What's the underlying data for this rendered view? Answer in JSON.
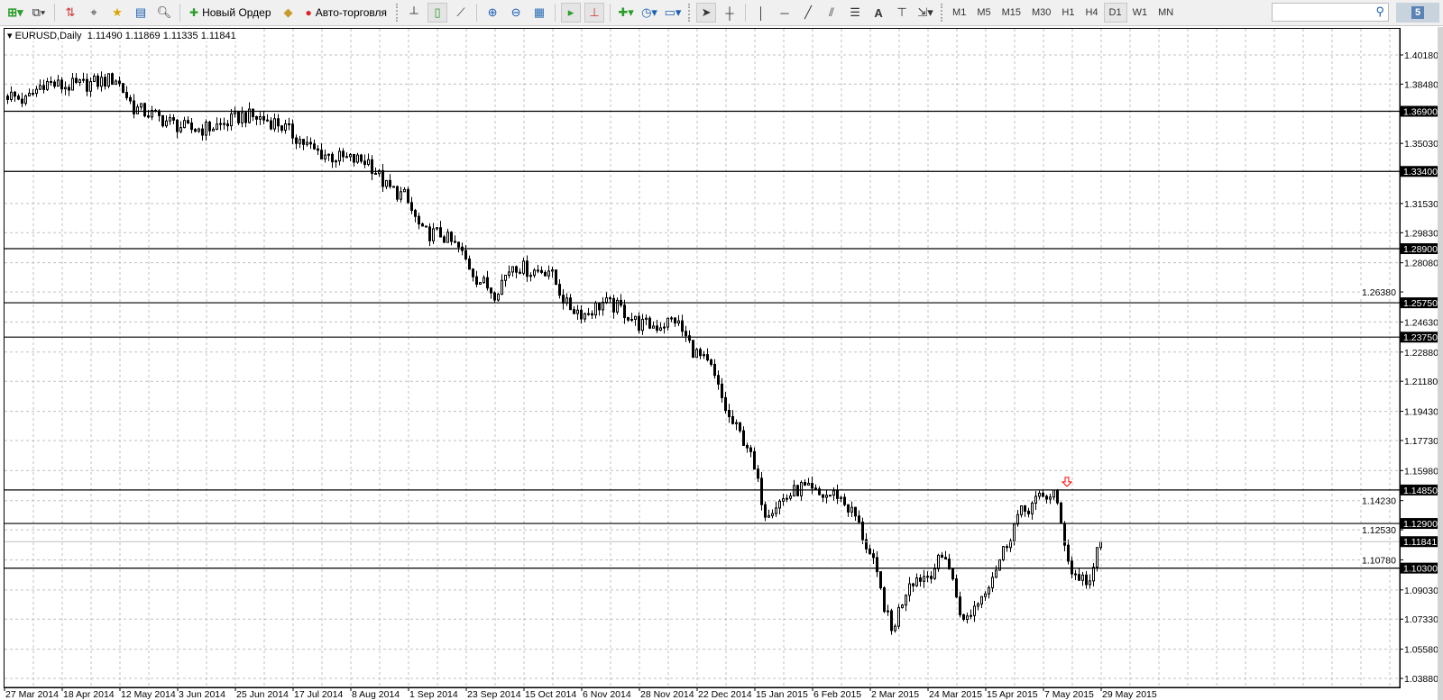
{
  "toolbar": {
    "new_order_label": "Новый Ордер",
    "autotrading_label": "Авто-торговля",
    "timeframes": [
      "M1",
      "M5",
      "M15",
      "M30",
      "H1",
      "H4",
      "D1",
      "W1",
      "MN"
    ],
    "selected_timeframe": "D1",
    "search_placeholder": "",
    "chat_count": "5"
  },
  "chart_header": {
    "symbol": "EURUSD,Daily",
    "open": "1.11490",
    "high": "1.11869",
    "low": "1.11335",
    "close": "1.11841"
  },
  "chart_data": {
    "type": "candlestick",
    "weekly_closes": [
      1.3787,
      1.375,
      1.386,
      1.3835,
      1.384,
      1.386,
      1.388,
      1.371,
      1.367,
      1.3625,
      1.3585,
      1.359,
      1.3615,
      1.3665,
      1.365,
      1.362,
      1.354,
      1.346,
      1.3425,
      1.3408,
      1.34,
      1.325,
      1.3195,
      1.298,
      1.2975,
      1.289,
      1.272,
      1.2635,
      1.28,
      1.276,
      1.277,
      1.256,
      1.251,
      1.2575,
      1.254,
      1.245,
      1.244,
      1.248,
      1.23,
      1.219,
      1.19,
      1.175,
      1.136,
      1.143,
      1.15,
      1.145,
      1.146,
      1.133,
      1.105,
      1.066,
      1.096,
      1.099,
      1.111,
      1.071,
      1.087,
      1.108,
      1.133,
      1.142,
      1.147,
      1.1,
      1.095
    ],
    "last_close": 1.11841,
    "ylim": [
      1.0388,
      1.4018
    ],
    "y_ticks": [
      "1.40180",
      "1.38480",
      "1.35030",
      "1.31530",
      "1.29830",
      "1.28080",
      "1.26380",
      "1.24630",
      "1.22880",
      "1.21180",
      "1.19430",
      "1.17730",
      "1.15980",
      "1.14230",
      "1.12530",
      "1.10780",
      "1.09030",
      "1.07330",
      "1.05580",
      "1.03880"
    ],
    "x_ticks": [
      "27 Mar 2014",
      "18 Apr 2014",
      "12 May 2014",
      "3 Jun 2014",
      "25 Jun 2014",
      "17 Jul 2014",
      "8 Aug 2014",
      "1 Sep 2014",
      "23 Sep 2014",
      "15 Oct 2014",
      "6 Nov 2014",
      "28 Nov 2014",
      "22 Dec 2014",
      "15 Jan 2015",
      "6 Feb 2015",
      "2 Mar 2015",
      "24 Mar 2015",
      "15 Apr 2015",
      "7 May 2015",
      "29 May 2015"
    ],
    "levels": [
      "1.36900",
      "1.33400",
      "1.28900",
      "1.25750",
      "1.23750",
      "1.14850",
      "1.12900",
      "1.10300"
    ],
    "current_price": "1.11841",
    "sell_arrow": {
      "date": "May 2015",
      "price": 1.1485,
      "color": "#ff0000"
    },
    "grid": true,
    "colors": {
      "bull_body": "#ffffff",
      "bear_body": "#000000",
      "outline": "#000000",
      "level_line": "#000000",
      "current_price_line": "#c0c0c0",
      "grid": "#c0c0c0"
    }
  }
}
